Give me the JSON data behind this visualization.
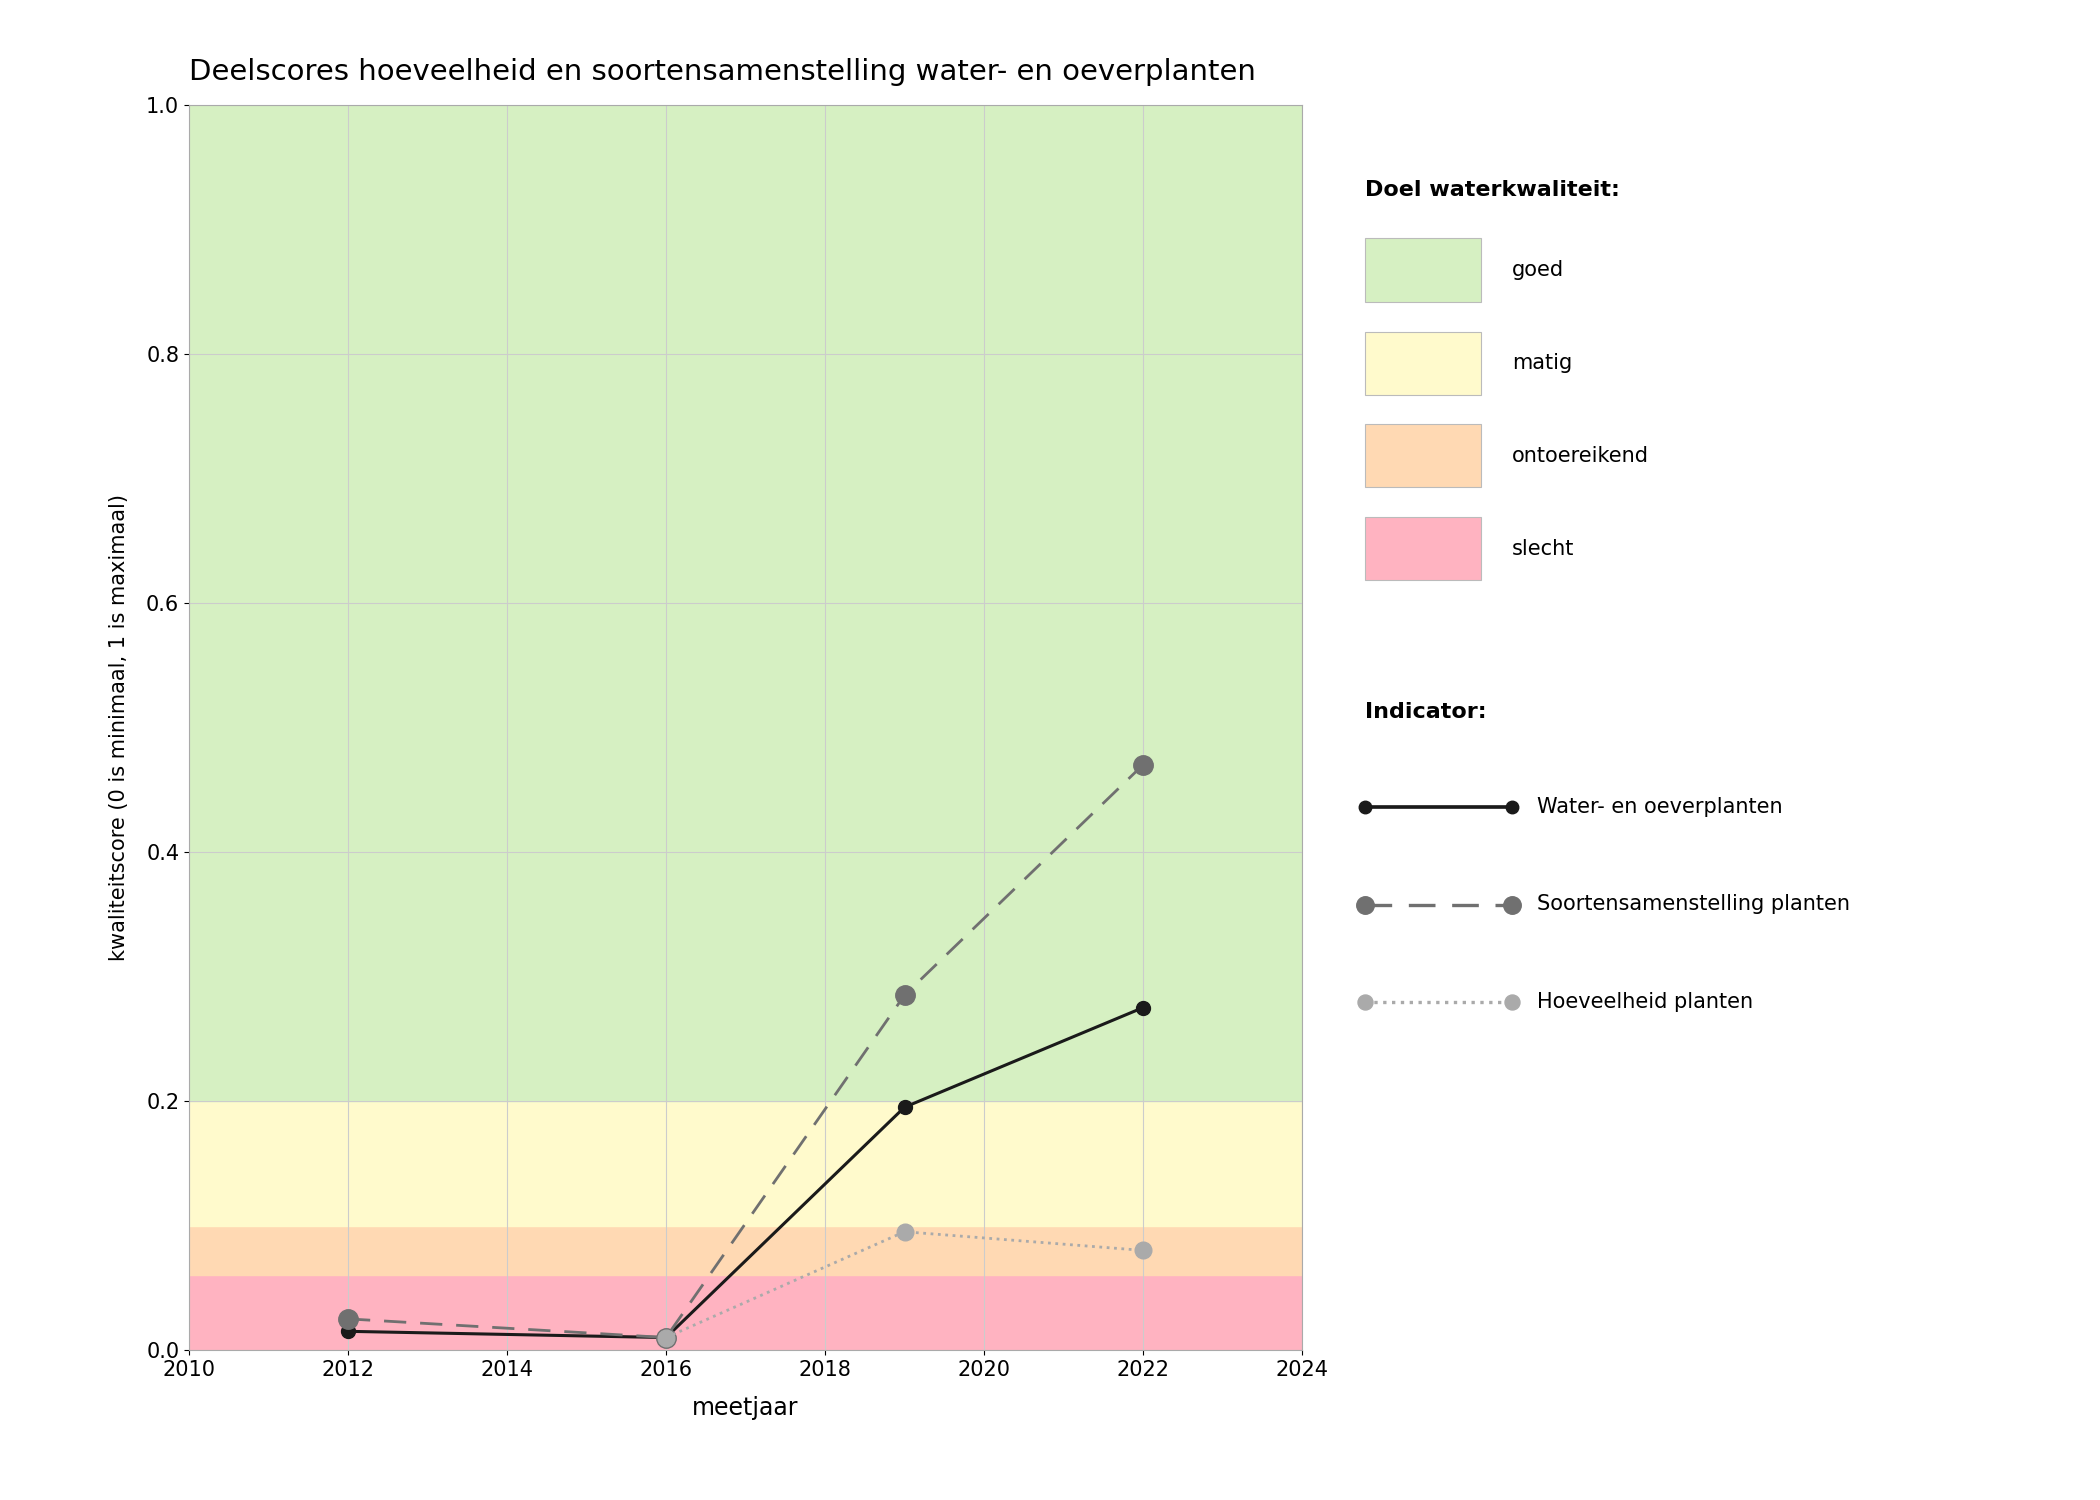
{
  "title": "Deelscores hoeveelheid en soortensamenstelling water- en oeverplanten",
  "xlabel": "meetjaar",
  "ylabel": "kwaliteitscore (0 is minimaal, 1 is maximaal)",
  "xlim": [
    2010,
    2024
  ],
  "ylim": [
    0.0,
    1.0
  ],
  "xticks": [
    2010,
    2012,
    2014,
    2016,
    2018,
    2020,
    2022,
    2024
  ],
  "yticks": [
    0.0,
    0.2,
    0.4,
    0.6,
    0.8,
    1.0
  ],
  "bg_zones": [
    {
      "ymin": 0.0,
      "ymax": 0.06,
      "color": "#ffb3c1",
      "label": "slecht"
    },
    {
      "ymin": 0.06,
      "ymax": 0.1,
      "color": "#ffd9b3",
      "label": "ontoereikend"
    },
    {
      "ymin": 0.1,
      "ymax": 0.2,
      "color": "#fffacc",
      "label": "matig"
    },
    {
      "ymin": 0.2,
      "ymax": 1.0,
      "color": "#d6f0c2",
      "label": "goed"
    }
  ],
  "line_water_oever": {
    "x": [
      2012,
      2016,
      2019,
      2022
    ],
    "y": [
      0.015,
      0.01,
      0.195,
      0.275
    ],
    "color": "#1a1a1a",
    "linestyle": "solid",
    "linewidth": 2.2,
    "markersize": 10,
    "label": "Water- en oeverplanten"
  },
  "line_soortensamenstelling": {
    "x": [
      2012,
      2016,
      2019,
      2022
    ],
    "y": [
      0.025,
      0.01,
      0.285,
      0.47
    ],
    "color": "#707070",
    "linestyle": "dashed",
    "linewidth": 2.0,
    "markersize": 14,
    "label": "Soortensamenstelling planten"
  },
  "line_hoeveelheid": {
    "x": [
      2016,
      2019,
      2022
    ],
    "y": [
      0.01,
      0.095,
      0.08
    ],
    "color": "#aaaaaa",
    "linestyle": "dotted",
    "linewidth": 2.0,
    "markersize": 12,
    "label": "Hoeveelheid planten"
  },
  "legend_quality_title": "Doel waterkwaliteit:",
  "legend_indicator_title": "Indicator:",
  "background_color": "#ffffff",
  "grid_color": "#cccccc",
  "legend_patch_colors": [
    "#d6f0c2",
    "#fffacc",
    "#ffd9b3",
    "#ffb3c1"
  ],
  "legend_patch_labels": [
    "goed",
    "matig",
    "ontoereikend",
    "slecht"
  ]
}
